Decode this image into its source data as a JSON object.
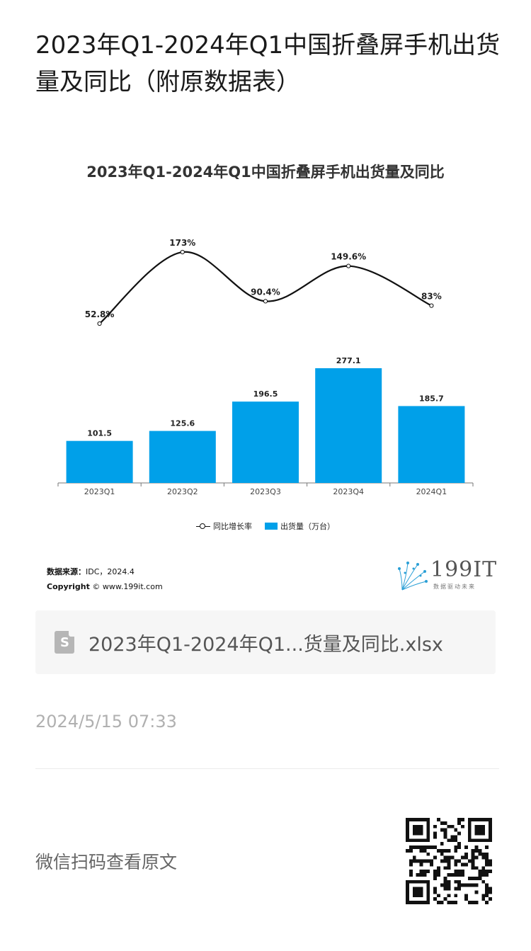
{
  "article": {
    "title": "2023年Q1-2024年Q1中国折叠屏手机出货量及同比（附原数据表）"
  },
  "chart_data": {
    "type": "bar",
    "title": "2023年Q1-2024年Q1中国折叠屏手机出货量及同比",
    "categories": [
      "2023Q1",
      "2023Q2",
      "2023Q3",
      "2023Q4",
      "2024Q1"
    ],
    "series": [
      {
        "name": "出货量（万台）",
        "type": "bar",
        "color": "#00A0E9",
        "values": [
          101.5,
          125.6,
          196.5,
          277.1,
          185.7
        ]
      },
      {
        "name": "同比增长率",
        "type": "line",
        "color": "#111111",
        "values": [
          52.8,
          173,
          90.4,
          149.6,
          83
        ]
      }
    ],
    "bar_labels": [
      "101.5",
      "125.6",
      "196.5",
      "277.1",
      "185.7"
    ],
    "line_labels": [
      "52.8%",
      "173%",
      "90.4%",
      "149.6%",
      "83%"
    ],
    "legend": {
      "placement": "bottom-center",
      "items": [
        "同比增长率",
        "出货量（万台）"
      ]
    },
    "source_label": "数据来源：",
    "source_value": "IDC，2024.4",
    "copyright_label": "Copyright",
    "copyright_value": " © www.199it.com",
    "logo_text": "199IT",
    "logo_sub": "数据驱动未来"
  },
  "attachment": {
    "icon": "spreadsheet-file-icon",
    "icon_letter": "S",
    "file_name": "2023年Q1-2024年Q1...货量及同比.xlsx"
  },
  "timestamp": "2024/5/15 07:33",
  "qr": {
    "caption": "微信扫码查看原文",
    "icon": "qr-code-icon"
  }
}
